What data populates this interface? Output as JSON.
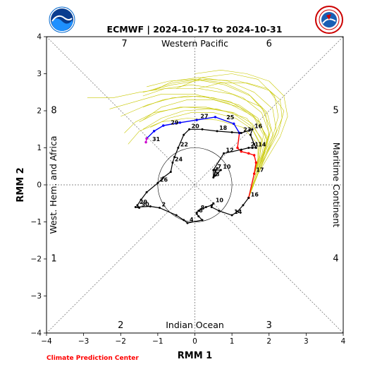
{
  "footer": "Climate Prediction Center",
  "logos": {
    "left": "noaa-logo",
    "right": "nws-logo"
  },
  "colors": {
    "ensemble": "#c8c800",
    "observed": "#000000",
    "forecast_blue": "#0000ff",
    "forecast_red": "#ff0000",
    "forecast_magenta": "#cc00cc",
    "footer_text": "#ff0000"
  },
  "chart_data": {
    "type": "line",
    "title": "ECMWF | 2024-10-17 to 2024-10-31",
    "xlabel": "RMM 1",
    "ylabel": "RMM 2",
    "xlim": [
      -4,
      4
    ],
    "ylim": [
      -4,
      4
    ],
    "xticks": [
      -4,
      -3,
      -2,
      -1,
      0,
      1,
      2,
      3,
      4
    ],
    "yticks": [
      -4,
      -3,
      -2,
      -1,
      0,
      1,
      2,
      3,
      4
    ],
    "unit_circle_radius": 1,
    "regions": [
      {
        "text": "Western Pacific",
        "x": 0,
        "y": 3.8
      },
      {
        "text": "Indian Ocean",
        "x": 0,
        "y": -3.8
      },
      {
        "text": "West. Hem. and Africa",
        "x": -3.8,
        "y": 0,
        "rotate": -90
      },
      {
        "text": "Maritime Continent",
        "x": 3.8,
        "y": 0,
        "rotate": 90
      }
    ],
    "phase_labels": [
      {
        "text": "7",
        "x": -1.9,
        "y": 3.8
      },
      {
        "text": "6",
        "x": 2.0,
        "y": 3.8
      },
      {
        "text": "8",
        "x": -3.8,
        "y": 2.0
      },
      {
        "text": "5",
        "x": 3.8,
        "y": 2.0
      },
      {
        "text": "1",
        "x": -3.8,
        "y": -2.0
      },
      {
        "text": "4",
        "x": 3.8,
        "y": -2.0
      },
      {
        "text": "2",
        "x": -2.0,
        "y": -3.8
      },
      {
        "text": "3",
        "x": 2.0,
        "y": -3.8
      }
    ],
    "observed_series": [
      {
        "x": 0.6,
        "y": 0.45
      },
      {
        "x": 0.52,
        "y": 0.25
      },
      {
        "x": 0.55,
        "y": 0.4,
        "label": "7"
      },
      {
        "x": 0.7,
        "y": 0.4,
        "label": "10"
      },
      {
        "x": 0.55,
        "y": 0.25
      },
      {
        "x": 0.5,
        "y": 0.2,
        "label": "8"
      },
      {
        "x": 0.5,
        "y": 0.4
      },
      {
        "x": 0.78,
        "y": 0.85,
        "label": "12"
      },
      {
        "x": 1.25,
        "y": 0.95
      },
      {
        "x": 1.45,
        "y": 1.0,
        "label": "21"
      },
      {
        "x": 1.55,
        "y": 1.0
      },
      {
        "x": 1.65,
        "y": 1.0,
        "label": "14"
      },
      {
        "x": 1.6,
        "y": 1.1
      },
      {
        "x": 1.5,
        "y": 1.35
      },
      {
        "x": 1.55,
        "y": 1.5,
        "label": "16"
      },
      {
        "x": 1.25,
        "y": 1.4,
        "label": "23"
      },
      {
        "x": 1.0,
        "y": 1.42
      },
      {
        "x": 0.6,
        "y": 1.45,
        "label": "18"
      },
      {
        "x": 0.2,
        "y": 1.5
      },
      {
        "x": -0.15,
        "y": 1.5,
        "label": "20"
      },
      {
        "x": -0.3,
        "y": 1.35
      },
      {
        "x": -0.45,
        "y": 1.0,
        "label": "22"
      },
      {
        "x": -0.55,
        "y": 0.75
      },
      {
        "x": -0.6,
        "y": 0.6,
        "label": "24"
      },
      {
        "x": -0.65,
        "y": 0.35
      },
      {
        "x": -0.85,
        "y": 0.2
      },
      {
        "x": -1.0,
        "y": 0.05,
        "label": "26"
      },
      {
        "x": -1.3,
        "y": -0.2
      },
      {
        "x": -1.45,
        "y": -0.4
      },
      {
        "x": -1.55,
        "y": -0.55,
        "label": "29"
      },
      {
        "x": -1.5,
        "y": -0.62,
        "label": "30"
      },
      {
        "x": -1.6,
        "y": -0.6
      },
      {
        "x": -1.2,
        "y": -0.58
      },
      {
        "x": -0.95,
        "y": -0.62,
        "label": "2"
      },
      {
        "x": -0.5,
        "y": -0.82
      },
      {
        "x": -0.3,
        "y": -0.95
      },
      {
        "x": -0.2,
        "y": -1.03,
        "label": "4"
      },
      {
        "x": 0.2,
        "y": -0.95
      },
      {
        "x": 0.1,
        "y": -0.85
      },
      {
        "x": 0.05,
        "y": -0.78,
        "label": "6"
      },
      {
        "x": 0.05,
        "y": -0.75
      },
      {
        "x": 0.1,
        "y": -0.7,
        "label": "8"
      },
      {
        "x": 0.3,
        "y": -0.6
      },
      {
        "x": 0.45,
        "y": -0.55
      },
      {
        "x": 0.5,
        "y": -0.5,
        "label": "10"
      },
      {
        "x": 0.45,
        "y": -0.6
      },
      {
        "x": 0.65,
        "y": -0.7
      },
      {
        "x": 1.0,
        "y": -0.82,
        "label": "14"
      },
      {
        "x": 1.15,
        "y": -0.72
      },
      {
        "x": 1.3,
        "y": -0.55
      },
      {
        "x": 1.45,
        "y": -0.35,
        "label": "16"
      }
    ],
    "forecast_red": {
      "x": [
        1.45,
        1.6,
        1.65,
        1.6,
        1.45,
        1.25,
        1.15,
        1.2
      ],
      "y": [
        -0.35,
        0.3,
        0.6,
        0.8,
        0.85,
        0.9,
        1.0,
        1.4
      ],
      "labels": [
        {
          "text": "17",
          "x": 1.65,
          "y": 0.35
        }
      ]
    },
    "forecast_blue": {
      "x": [
        1.2,
        1.05,
        0.55,
        0.05,
        -0.4,
        -0.85,
        -1.1,
        -1.3
      ],
      "y": [
        1.4,
        1.65,
        1.83,
        1.75,
        1.68,
        1.6,
        1.45,
        1.25
      ],
      "labels": [
        {
          "text": "25",
          "x": 0.85,
          "y": 1.77
        },
        {
          "text": "27",
          "x": 0.15,
          "y": 1.8
        },
        {
          "text": "29",
          "x": -0.65,
          "y": 1.63
        }
      ]
    },
    "forecast_magenta": {
      "x": [
        -1.3,
        -1.32
      ],
      "y": [
        1.25,
        1.15
      ],
      "labels": [
        {
          "text": "31",
          "x": -1.15,
          "y": 1.18
        }
      ]
    },
    "ensemble_members": [
      {
        "x": [
          1.45,
          1.7,
          1.9,
          2.05,
          1.8,
          1.0,
          0.1,
          -0.8,
          -1.5,
          -2.2,
          -2.9
        ],
        "y": [
          -0.35,
          0.35,
          0.9,
          1.5,
          2.1,
          2.45,
          2.6,
          2.6,
          2.5,
          2.35,
          2.35
        ]
      },
      {
        "x": [
          1.45,
          1.65,
          1.85,
          1.95,
          1.6,
          0.9,
          0.0,
          -0.9,
          -1.6,
          -2.3
        ],
        "y": [
          -0.35,
          0.3,
          0.8,
          1.3,
          1.85,
          2.2,
          2.45,
          2.45,
          2.25,
          2.05
        ]
      },
      {
        "x": [
          1.45,
          1.6,
          1.75,
          1.8,
          1.4,
          0.6,
          -0.3,
          -1.1,
          -1.6,
          -1.9
        ],
        "y": [
          -0.35,
          0.3,
          0.75,
          1.25,
          1.8,
          2.05,
          2.1,
          1.95,
          1.7,
          1.4
        ]
      },
      {
        "x": [
          1.45,
          1.7,
          1.95,
          2.25,
          2.4,
          2.0,
          1.2,
          0.3,
          -0.6,
          -1.4
        ],
        "y": [
          -0.35,
          0.3,
          0.85,
          1.4,
          2.0,
          2.55,
          2.8,
          2.85,
          2.7,
          2.5
        ]
      },
      {
        "x": [
          1.45,
          1.6,
          1.7,
          1.7,
          1.3,
          0.6,
          -0.2,
          -0.9,
          -1.5,
          -1.8
        ],
        "y": [
          -0.35,
          0.3,
          0.7,
          1.1,
          1.55,
          1.75,
          1.8,
          1.7,
          1.45,
          1.1
        ]
      },
      {
        "x": [
          1.45,
          1.65,
          1.85,
          2.1,
          1.95,
          1.5,
          0.8,
          0.0,
          -0.7,
          -1.3
        ],
        "y": [
          -0.35,
          0.3,
          0.8,
          1.35,
          1.95,
          2.4,
          2.7,
          2.85,
          2.8,
          2.65
        ]
      },
      {
        "x": [
          1.45,
          1.6,
          1.8,
          1.95,
          1.75,
          1.2,
          0.5,
          -0.2,
          -0.9,
          -1.4
        ],
        "y": [
          -0.35,
          0.28,
          0.75,
          1.2,
          1.7,
          2.1,
          2.3,
          2.3,
          2.1,
          1.75
        ]
      },
      {
        "x": [
          1.45,
          1.7,
          1.9,
          2.1,
          2.25,
          2.15,
          1.7,
          1.0,
          0.2,
          -0.5
        ],
        "y": [
          -0.35,
          0.3,
          0.8,
          1.3,
          1.85,
          2.4,
          2.85,
          3.0,
          2.9,
          2.6
        ]
      },
      {
        "x": [
          1.45,
          1.6,
          1.75,
          1.85,
          1.55,
          0.95,
          0.2,
          -0.6,
          -1.3,
          -2.0
        ],
        "y": [
          -0.35,
          0.3,
          0.8,
          1.35,
          1.9,
          2.25,
          2.4,
          2.35,
          2.15,
          1.85
        ]
      },
      {
        "x": [
          1.45,
          1.65,
          1.85,
          2.0,
          1.8,
          1.3,
          0.6,
          -0.1,
          -0.8,
          -1.4
        ],
        "y": [
          -0.35,
          0.3,
          0.85,
          1.4,
          1.95,
          2.35,
          2.6,
          2.7,
          2.6,
          2.4
        ]
      },
      {
        "x": [
          1.45,
          1.6,
          1.7,
          1.75,
          1.5,
          1.0,
          0.3,
          -0.4,
          -1.0,
          -1.5
        ],
        "y": [
          -0.35,
          0.3,
          0.7,
          1.15,
          1.6,
          1.95,
          2.1,
          2.1,
          1.95,
          1.7
        ]
      },
      {
        "x": [
          1.45,
          1.7,
          2.0,
          2.3,
          2.5,
          2.4,
          2.0,
          1.4,
          0.7,
          0.0
        ],
        "y": [
          -0.35,
          0.3,
          0.8,
          1.3,
          1.85,
          2.4,
          2.8,
          3.0,
          3.1,
          3.0
        ]
      },
      {
        "x": [
          1.45,
          1.6,
          1.75,
          1.8,
          1.55,
          1.05,
          0.4,
          -0.3,
          -0.9,
          -1.4
        ],
        "y": [
          -0.35,
          0.3,
          0.75,
          1.2,
          1.65,
          1.95,
          2.05,
          2.0,
          1.8,
          1.5
        ]
      },
      {
        "x": [
          1.45,
          1.65,
          1.85,
          2.0,
          1.9,
          1.45,
          0.8,
          0.1,
          -0.6,
          -1.2
        ],
        "y": [
          -0.35,
          0.3,
          0.8,
          1.35,
          1.95,
          2.45,
          2.75,
          2.85,
          2.75,
          2.55
        ]
      },
      {
        "x": [
          1.45,
          1.6,
          1.8,
          1.9,
          1.7,
          1.2,
          0.5,
          -0.2,
          -0.85,
          -1.4
        ],
        "y": [
          -0.35,
          0.3,
          0.8,
          1.3,
          1.8,
          2.15,
          2.35,
          2.4,
          2.3,
          2.1
        ]
      },
      {
        "x": [
          1.45,
          1.7,
          1.95,
          2.2,
          2.1,
          1.6,
          0.9,
          0.1,
          -0.6,
          -1.1
        ],
        "y": [
          -0.35,
          0.3,
          0.85,
          1.45,
          2.05,
          2.5,
          2.8,
          2.9,
          2.8,
          2.55
        ]
      },
      {
        "x": [
          1.45,
          1.6,
          1.7,
          1.75,
          1.55,
          1.1,
          0.5,
          -0.1,
          -0.7,
          -1.2
        ],
        "y": [
          -0.35,
          0.3,
          0.7,
          1.1,
          1.5,
          1.8,
          1.95,
          1.95,
          1.8,
          1.55
        ]
      },
      {
        "x": [
          1.45,
          1.65,
          1.9,
          2.15,
          2.35,
          2.3,
          1.95,
          1.4,
          0.7,
          0.1
        ],
        "y": [
          -0.35,
          0.3,
          0.8,
          1.3,
          1.8,
          2.3,
          2.6,
          2.75,
          2.75,
          2.6
        ]
      }
    ]
  }
}
